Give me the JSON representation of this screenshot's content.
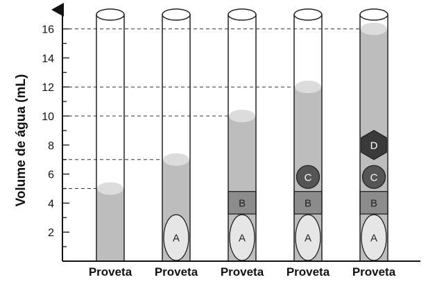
{
  "y_axis": {
    "title": "Volume de água (mL)",
    "tick_labels": [
      "2",
      "4",
      "6",
      "8",
      "10",
      "12",
      "14",
      "16"
    ],
    "min": 0,
    "max": 16
  },
  "cylinders": [
    {
      "label": "Proveta",
      "water_level_ml": 5,
      "objects": []
    },
    {
      "label": "Proveta",
      "water_level_ml": 7,
      "objects": [
        "A"
      ]
    },
    {
      "label": "Proveta",
      "water_level_ml": 10,
      "objects": [
        "A",
        "B"
      ]
    },
    {
      "label": "Proveta",
      "water_level_ml": 12,
      "objects": [
        "A",
        "B",
        "C"
      ]
    },
    {
      "label": "Proveta",
      "water_level_ml": 16,
      "objects": [
        "A",
        "B",
        "C",
        "D"
      ]
    }
  ],
  "objects": {
    "A": {
      "label": "A",
      "shape": "ellipse",
      "color": "#e6e6e6"
    },
    "B": {
      "label": "B",
      "shape": "rectangle",
      "color": "#8c8c8c"
    },
    "C": {
      "label": "C",
      "shape": "circle",
      "color": "#555555"
    },
    "D": {
      "label": "D",
      "shape": "hexagon",
      "color": "#3a3a3a"
    }
  },
  "colors": {
    "water": "#bdbdbd",
    "water_surface": "#dcdcdc",
    "axis": "#111111",
    "guide": "#333333"
  }
}
